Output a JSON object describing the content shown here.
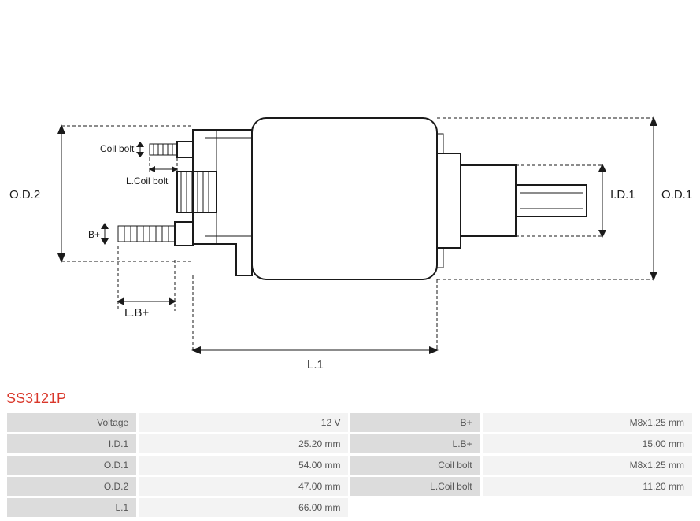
{
  "part_number": "SS3121P",
  "diagram": {
    "labels": {
      "od2": "O.D.2",
      "od1": "O.D.1",
      "id1": "I.D.1",
      "l1": "L.1",
      "lbplus": "L.B+",
      "bplus": "B+",
      "coil_bolt": "Coil bolt",
      "l_coil_bolt": "L.Coil bolt"
    }
  },
  "specs": {
    "rows": [
      {
        "label1": "Voltage",
        "value1": "12 V",
        "label2": "B+",
        "value2": "M8x1.25 mm"
      },
      {
        "label1": "I.D.1",
        "value1": "25.20 mm",
        "label2": "L.B+",
        "value2": "15.00 mm"
      },
      {
        "label1": "O.D.1",
        "value1": "54.00 mm",
        "label2": "Coil bolt",
        "value2": "M8x1.25 mm"
      },
      {
        "label1": "O.D.2",
        "value1": "47.00 mm",
        "label2": "L.Coil bolt",
        "value2": "11.20 mm"
      },
      {
        "label1": "L.1",
        "value1": "66.00 mm",
        "label2": "",
        "value2": ""
      }
    ],
    "colors": {
      "label_bg": "#dcdcdc",
      "value_bg": "#f3f3f3",
      "text": "#555555",
      "part_number": "#d9372a"
    }
  }
}
